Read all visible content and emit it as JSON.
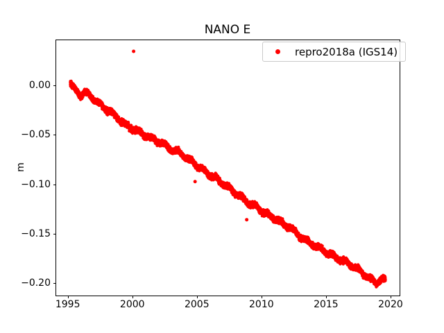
{
  "figure": {
    "background": "#ffffff"
  },
  "chart_data": {
    "type": "scatter",
    "title": "NANO E",
    "xlabel": "",
    "ylabel": "m",
    "legend": {
      "position": "upper right",
      "entries": [
        {
          "label": "repro2018a (IGS14)",
          "marker": "dot-icon",
          "color": "#ff0000"
        }
      ]
    },
    "marker_color": "#ff0000",
    "marker_radius_px": 2.2,
    "grid": false,
    "xlim": [
      1994.05,
      2020.7
    ],
    "ylim": [
      -0.213,
      0.0461
    ],
    "xticks": [
      1995,
      2000,
      2005,
      2010,
      2015,
      2020
    ],
    "xtick_labels": [
      "1995",
      "2000",
      "2005",
      "2010",
      "2015",
      "2020"
    ],
    "yticks": [
      0,
      -0.05,
      -0.1,
      -0.15,
      -0.2
    ],
    "ytick_labels": [
      "0.00",
      "−0.05",
      "−0.10",
      "−0.15",
      "−0.20"
    ],
    "x_start": 1995.2,
    "x_end": 2019.6,
    "points_per_year": 365,
    "noise_sigma": 0.0013,
    "annual_amplitude": 0.0015,
    "trend": [
      [
        1995.2,
        0.002
      ],
      [
        1995.35,
        -0.0013
      ],
      [
        1995.67,
        -0.0062
      ],
      [
        1996.0,
        -0.0095
      ],
      [
        1996.35,
        -0.007
      ],
      [
        1996.74,
        -0.0104
      ],
      [
        1997.2,
        -0.016
      ],
      [
        1997.8,
        -0.0223
      ],
      [
        1998.3,
        -0.027
      ],
      [
        1998.87,
        -0.0328
      ],
      [
        1999.4,
        -0.0395
      ],
      [
        1999.94,
        -0.0433
      ],
      [
        2000.5,
        -0.047
      ],
      [
        2001.01,
        -0.0503
      ],
      [
        2001.5,
        -0.0535
      ],
      [
        2002.08,
        -0.0573
      ],
      [
        2002.6,
        -0.061
      ],
      [
        2003.15,
        -0.0658
      ],
      [
        2003.68,
        -0.0679
      ],
      [
        2004.2,
        -0.073
      ],
      [
        2004.75,
        -0.0784
      ],
      [
        2005.3,
        -0.084
      ],
      [
        2005.82,
        -0.0889
      ],
      [
        2006.35,
        -0.093
      ],
      [
        2006.89,
        -0.098
      ],
      [
        2007.4,
        -0.103
      ],
      [
        2007.96,
        -0.1085
      ],
      [
        2008.5,
        -0.1135
      ],
      [
        2009.02,
        -0.119
      ],
      [
        2009.55,
        -0.1225
      ],
      [
        2010.09,
        -0.1274
      ],
      [
        2010.6,
        -0.1315
      ],
      [
        2011.16,
        -0.1358
      ],
      [
        2011.75,
        -0.1405
      ],
      [
        2012.34,
        -0.145
      ],
      [
        2012.8,
        -0.1505
      ],
      [
        2013.3,
        -0.1555
      ],
      [
        2013.85,
        -0.16
      ],
      [
        2014.36,
        -0.1639
      ],
      [
        2014.9,
        -0.168
      ],
      [
        2015.43,
        -0.1716
      ],
      [
        2016.0,
        -0.1755
      ],
      [
        2016.5,
        -0.1786
      ],
      [
        2017.0,
        -0.1825
      ],
      [
        2017.57,
        -0.187
      ],
      [
        2018.0,
        -0.1915
      ],
      [
        2018.37,
        -0.1954
      ],
      [
        2018.9,
        -0.1997
      ],
      [
        2019.28,
        -0.1962
      ],
      [
        2019.6,
        -0.1976
      ]
    ],
    "outliers": [
      [
        2000.1,
        0.0345
      ],
      [
        2004.86,
        -0.0973
      ],
      [
        2008.86,
        -0.1359
      ]
    ]
  }
}
